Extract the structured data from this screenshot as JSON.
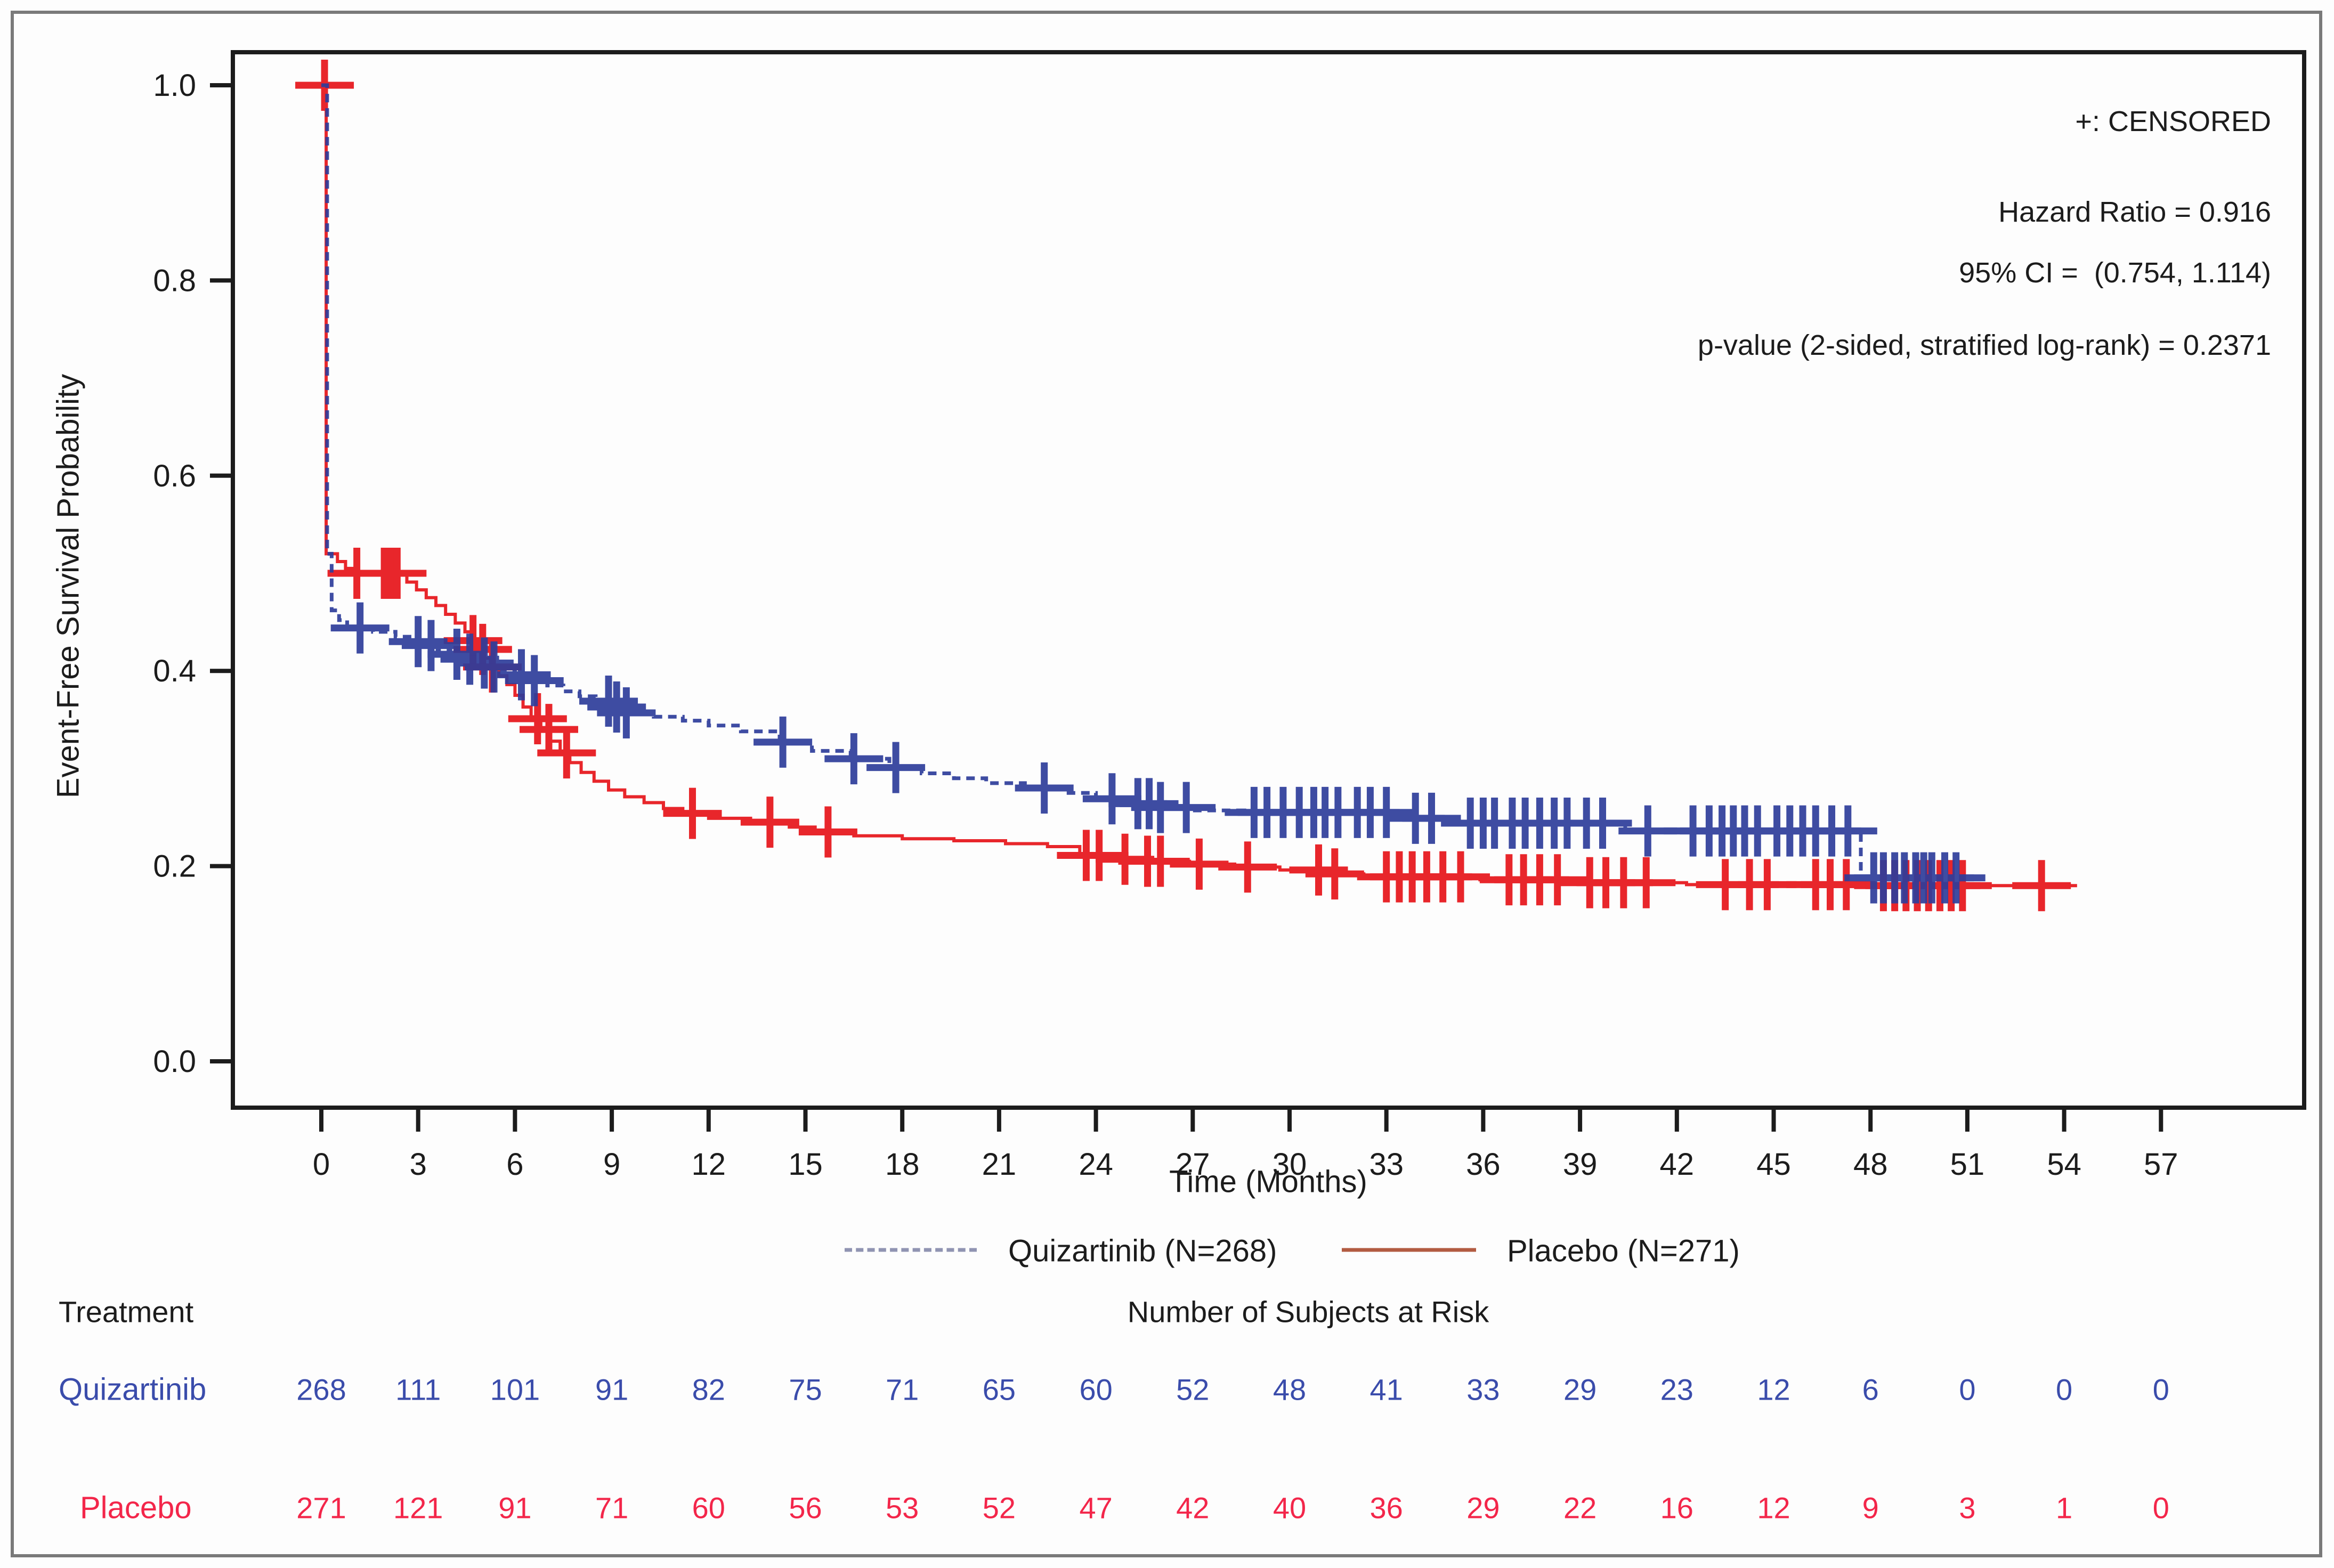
{
  "figure": {
    "annotations": {
      "censored_note": "+: CENSORED",
      "hazard_ratio": "Hazard Ratio = 0.916",
      "confidence_interval": "95% CI =  (0.754, 1.114)",
      "p_value": "p-value (2-sided, stratified log-rank) = 0.2371"
    },
    "colors": {
      "quizartinib": "#2e3d9b",
      "placebo": "#e8262b",
      "quizartinib_table": "#3a4cab",
      "placebo_table": "#f3264a",
      "legend_quizartinib_line": "#9094b2",
      "legend_placebo_line": "#b25b41",
      "axis": "#1c1c1c",
      "figure_border": "#7a7a7a"
    },
    "legend": {
      "items": [
        {
          "key": "quizartinib",
          "label": "Quizartinib (N=268)"
        },
        {
          "key": "placebo",
          "label": "Placebo (N=271)"
        }
      ]
    },
    "risk_table": {
      "treatment_header": "Treatment",
      "title": "Number of Subjects at Risk",
      "rows": [
        {
          "label": "Quizartinib",
          "color_key": "quizartinib_table",
          "values": [
            268,
            111,
            101,
            91,
            82,
            75,
            71,
            65,
            60,
            52,
            48,
            41,
            33,
            29,
            23,
            12,
            6,
            0,
            0,
            0
          ]
        },
        {
          "label": "Placebo",
          "color_key": "placebo_table",
          "values": [
            271,
            121,
            91,
            71,
            60,
            56,
            53,
            52,
            47,
            42,
            40,
            36,
            29,
            22,
            16,
            12,
            9,
            3,
            1,
            0
          ]
        }
      ]
    }
  },
  "chart_data": {
    "type": "line",
    "subtype": "kaplan-meier-step",
    "title": "",
    "xlabel": "Time (Months)",
    "ylabel": "Event-Free Survival Probability",
    "xlim": [
      0,
      57
    ],
    "ylim": [
      0.0,
      1.0
    ],
    "xticks": [
      0,
      3,
      6,
      9,
      12,
      15,
      18,
      21,
      24,
      27,
      30,
      33,
      36,
      39,
      42,
      45,
      48,
      51,
      54,
      57
    ],
    "yticks": [
      0.0,
      0.2,
      0.4,
      0.6,
      0.8,
      1.0
    ],
    "grid": false,
    "legend_position": "below",
    "series": [
      {
        "name": "Placebo (N=271)",
        "key": "placebo",
        "color_key": "placebo",
        "line_style": "solid",
        "stroke_width": 6,
        "end_time": 54.4,
        "steps": [
          [
            0,
            1.0
          ],
          [
            0.15,
            0.52
          ],
          [
            0.5,
            0.512
          ],
          [
            0.75,
            0.505
          ],
          [
            0.95,
            0.5
          ],
          [
            2.65,
            0.491
          ],
          [
            2.95,
            0.483
          ],
          [
            3.25,
            0.475
          ],
          [
            3.55,
            0.467
          ],
          [
            3.85,
            0.458
          ],
          [
            4.15,
            0.449
          ],
          [
            4.45,
            0.44
          ],
          [
            4.65,
            0.431
          ],
          [
            4.85,
            0.422
          ],
          [
            5.05,
            0.413
          ],
          [
            5.25,
            0.404
          ],
          [
            5.5,
            0.395
          ],
          [
            5.75,
            0.386
          ],
          [
            6.0,
            0.375
          ],
          [
            6.25,
            0.363
          ],
          [
            6.5,
            0.351
          ],
          [
            6.8,
            0.34
          ],
          [
            7.1,
            0.328
          ],
          [
            7.4,
            0.316
          ],
          [
            7.7,
            0.306
          ],
          [
            8.05,
            0.296
          ],
          [
            8.45,
            0.287
          ],
          [
            8.9,
            0.278
          ],
          [
            9.4,
            0.271
          ],
          [
            10.0,
            0.265
          ],
          [
            10.6,
            0.259
          ],
          [
            11.2,
            0.254
          ],
          [
            12.0,
            0.249
          ],
          [
            13.3,
            0.245
          ],
          [
            14.5,
            0.24
          ],
          [
            15.3,
            0.235
          ],
          [
            16.5,
            0.231
          ],
          [
            18.0,
            0.228
          ],
          [
            19.6,
            0.226
          ],
          [
            21.2,
            0.223
          ],
          [
            22.5,
            0.22
          ],
          [
            23.5,
            0.211
          ],
          [
            24.7,
            0.207
          ],
          [
            25.6,
            0.205
          ],
          [
            26.9,
            0.202
          ],
          [
            28.3,
            0.199
          ],
          [
            29.7,
            0.196
          ],
          [
            31.0,
            0.192
          ],
          [
            32.3,
            0.189
          ],
          [
            35.9,
            0.186
          ],
          [
            38.6,
            0.183
          ],
          [
            42.3,
            0.181
          ],
          [
            48.0,
            0.18
          ]
        ],
        "censor_times": [
          0.1,
          1.1,
          1.95,
          2.15,
          2.35,
          4.7,
          5.0,
          5.3,
          6.7,
          7.05,
          7.6,
          11.5,
          13.9,
          15.7,
          23.7,
          24.1,
          24.9,
          25.6,
          26.0,
          27.2,
          28.7,
          30.9,
          31.4,
          33.0,
          33.4,
          33.8,
          34.25,
          34.75,
          35.3,
          36.8,
          37.25,
          37.75,
          38.3,
          39.3,
          39.8,
          40.35,
          41.05,
          43.5,
          44.25,
          44.8,
          46.3,
          46.75,
          47.25,
          48.4,
          48.75,
          49.1,
          49.45,
          49.8,
          50.15,
          50.5,
          50.85,
          53.3
        ]
      },
      {
        "name": "Quizartinib (N=268)",
        "key": "quizartinib",
        "color_key": "quizartinib",
        "line_style": "dashed",
        "stroke_width": 7,
        "end_time": 50.9,
        "steps": [
          [
            0,
            1.0
          ],
          [
            0.18,
            0.52
          ],
          [
            0.32,
            0.462
          ],
          [
            0.55,
            0.452
          ],
          [
            0.8,
            0.444
          ],
          [
            1.6,
            0.44
          ],
          [
            2.3,
            0.435
          ],
          [
            2.8,
            0.43
          ],
          [
            3.2,
            0.426
          ],
          [
            3.6,
            0.421
          ],
          [
            4.0,
            0.417
          ],
          [
            4.4,
            0.412
          ],
          [
            4.8,
            0.408
          ],
          [
            5.2,
            0.404
          ],
          [
            5.6,
            0.4
          ],
          [
            6.0,
            0.396
          ],
          [
            6.5,
            0.39
          ],
          [
            7.0,
            0.385
          ],
          [
            7.5,
            0.379
          ],
          [
            8.0,
            0.374
          ],
          [
            8.5,
            0.369
          ],
          [
            9.0,
            0.363
          ],
          [
            9.4,
            0.357
          ],
          [
            10.3,
            0.353
          ],
          [
            11.2,
            0.349
          ],
          [
            12.0,
            0.344
          ],
          [
            13.0,
            0.338
          ],
          [
            14.2,
            0.327
          ],
          [
            15.2,
            0.318
          ],
          [
            16.4,
            0.31
          ],
          [
            17.6,
            0.301
          ],
          [
            18.6,
            0.295
          ],
          [
            19.6,
            0.29
          ],
          [
            20.6,
            0.285
          ],
          [
            21.8,
            0.28
          ],
          [
            23.0,
            0.275
          ],
          [
            24.0,
            0.269
          ],
          [
            25.0,
            0.264
          ],
          [
            26.0,
            0.26
          ],
          [
            27.0,
            0.257
          ],
          [
            28.6,
            0.255
          ],
          [
            33.7,
            0.249
          ],
          [
            35.1,
            0.244
          ],
          [
            40.4,
            0.236
          ],
          [
            47.7,
            0.188
          ]
        ],
        "censor_times": [
          1.2,
          3.0,
          3.4,
          4.2,
          4.6,
          5.05,
          5.35,
          6.2,
          6.6,
          8.9,
          9.15,
          9.45,
          14.3,
          16.5,
          17.8,
          22.4,
          24.5,
          25.3,
          25.65,
          26.0,
          26.8,
          28.9,
          29.3,
          29.8,
          30.3,
          30.75,
          31.1,
          31.5,
          32.1,
          32.5,
          33.0,
          33.9,
          34.4,
          35.6,
          36.0,
          36.35,
          36.9,
          37.3,
          37.75,
          38.2,
          38.6,
          39.2,
          39.7,
          41.1,
          42.5,
          43.0,
          43.4,
          43.75,
          44.1,
          44.5,
          45.1,
          45.5,
          45.9,
          46.3,
          46.8,
          47.3,
          48.1,
          48.4,
          48.75,
          49.05,
          49.4,
          49.65,
          49.9,
          50.3,
          50.65
        ]
      }
    ]
  }
}
